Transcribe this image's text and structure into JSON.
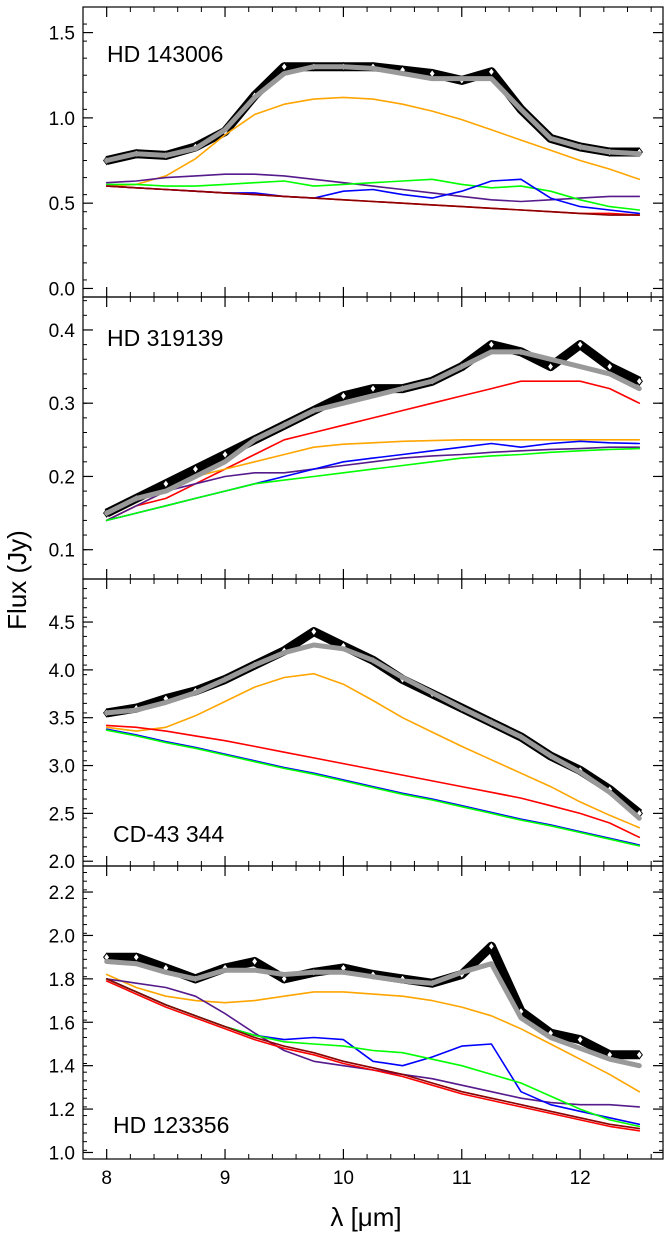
{
  "chart_data": {
    "type": "line",
    "figure": {
      "xlabel": "λ [μm]",
      "ylabel": "Flux (Jy)",
      "xlim": [
        7.8,
        12.7
      ],
      "xticks": [
        "8",
        "9",
        "10",
        "11",
        "12"
      ],
      "tick_values": [
        8,
        9,
        10,
        11,
        12
      ],
      "grid": false
    },
    "series_colors": {
      "observed": "#000000",
      "model_fit": "#999999",
      "orange": "#ffa500",
      "red": "#ff0000",
      "dark_red": "#8b0000",
      "blue": "#0000ff",
      "green": "#00ff00",
      "purple": "#551a8b"
    },
    "panels": [
      {
        "label": "HD 143006",
        "ylim": [
          -0.05,
          1.65
        ],
        "yticks": [
          "0.0",
          "0.5",
          "1.0",
          "1.5"
        ],
        "ytick_values": [
          0.0,
          0.5,
          1.0,
          1.5
        ],
        "x": [
          8.0,
          8.25,
          8.5,
          8.75,
          9.0,
          9.25,
          9.5,
          9.75,
          10.0,
          10.25,
          10.5,
          10.75,
          11.0,
          11.25,
          11.5,
          11.75,
          12.0,
          12.25,
          12.5
        ],
        "observed": [
          0.75,
          0.79,
          0.78,
          0.83,
          0.92,
          1.13,
          1.3,
          1.3,
          1.3,
          1.3,
          1.28,
          1.26,
          1.22,
          1.27,
          1.05,
          0.88,
          0.83,
          0.8,
          0.8
        ],
        "series": [
          {
            "key": "model_fit",
            "values": [
              0.75,
              0.79,
              0.78,
              0.82,
              0.93,
              1.12,
              1.26,
              1.3,
              1.3,
              1.29,
              1.26,
              1.23,
              1.23,
              1.23,
              1.05,
              0.88,
              0.83,
              0.8,
              0.79
            ]
          },
          {
            "key": "orange",
            "values": [
              0.6,
              0.61,
              0.66,
              0.76,
              0.9,
              1.02,
              1.08,
              1.11,
              1.12,
              1.11,
              1.08,
              1.04,
              0.99,
              0.93,
              0.87,
              0.81,
              0.75,
              0.7,
              0.64
            ]
          },
          {
            "key": "purple",
            "values": [
              0.62,
              0.63,
              0.65,
              0.66,
              0.67,
              0.67,
              0.66,
              0.64,
              0.62,
              0.6,
              0.58,
              0.56,
              0.54,
              0.52,
              0.51,
              0.52,
              0.53,
              0.54,
              0.54
            ]
          },
          {
            "key": "green",
            "values": [
              0.61,
              0.61,
              0.6,
              0.6,
              0.61,
              0.62,
              0.63,
              0.6,
              0.61,
              0.62,
              0.63,
              0.64,
              0.61,
              0.59,
              0.6,
              0.57,
              0.52,
              0.48,
              0.46
            ]
          },
          {
            "key": "blue",
            "values": [
              0.6,
              0.59,
              0.58,
              0.57,
              0.56,
              0.56,
              0.54,
              0.53,
              0.57,
              0.58,
              0.55,
              0.53,
              0.57,
              0.63,
              0.64,
              0.53,
              0.48,
              0.46,
              0.44
            ]
          },
          {
            "key": "red",
            "values": [
              0.6,
              0.59,
              0.58,
              0.57,
              0.56,
              0.55,
              0.54,
              0.53,
              0.52,
              0.51,
              0.5,
              0.49,
              0.48,
              0.47,
              0.46,
              0.45,
              0.44,
              0.44,
              0.43
            ]
          },
          {
            "key": "dark_red",
            "values": [
              0.6,
              0.59,
              0.58,
              0.57,
              0.56,
              0.55,
              0.54,
              0.53,
              0.52,
              0.51,
              0.5,
              0.49,
              0.48,
              0.47,
              0.46,
              0.45,
              0.44,
              0.43,
              0.43
            ]
          }
        ]
      },
      {
        "label": "HD 319139",
        "ylim": [
          0.06,
          0.445
        ],
        "yticks": [
          "0.1",
          "0.2",
          "0.3",
          "0.4"
        ],
        "ytick_values": [
          0.1,
          0.2,
          0.3,
          0.4
        ],
        "x": [
          8.0,
          8.25,
          8.5,
          8.75,
          9.0,
          9.25,
          9.5,
          9.75,
          10.0,
          10.25,
          10.5,
          10.75,
          11.0,
          11.25,
          11.5,
          11.75,
          12.0,
          12.25,
          12.5
        ],
        "observed": [
          0.15,
          0.17,
          0.19,
          0.21,
          0.23,
          0.25,
          0.27,
          0.29,
          0.31,
          0.32,
          0.32,
          0.33,
          0.35,
          0.38,
          0.37,
          0.35,
          0.38,
          0.35,
          0.33
        ],
        "series": [
          {
            "key": "model_fit",
            "values": [
              0.15,
              0.17,
              0.18,
              0.2,
              0.22,
              0.25,
              0.27,
              0.29,
              0.3,
              0.31,
              0.32,
              0.33,
              0.35,
              0.37,
              0.37,
              0.36,
              0.35,
              0.34,
              0.32
            ]
          },
          {
            "key": "red",
            "values": [
              0.14,
              0.16,
              0.17,
              0.19,
              0.21,
              0.23,
              0.25,
              0.26,
              0.27,
              0.28,
              0.29,
              0.3,
              0.31,
              0.32,
              0.33,
              0.33,
              0.33,
              0.32,
              0.3
            ]
          },
          {
            "key": "orange",
            "values": [
              0.14,
              0.16,
              0.18,
              0.2,
              0.21,
              0.22,
              0.23,
              0.24,
              0.244,
              0.246,
              0.248,
              0.249,
              0.25,
              0.25,
              0.25,
              0.25,
              0.25,
              0.25,
              0.25
            ]
          },
          {
            "key": "purple",
            "values": [
              0.14,
              0.16,
              0.18,
              0.19,
              0.2,
              0.205,
              0.205,
              0.21,
              0.215,
              0.22,
              0.225,
              0.228,
              0.23,
              0.233,
              0.235,
              0.237,
              0.238,
              0.24,
              0.24
            ]
          },
          {
            "key": "blue",
            "values": [
              0.14,
              0.15,
              0.16,
              0.17,
              0.18,
              0.19,
              0.2,
              0.21,
              0.22,
              0.225,
              0.23,
              0.235,
              0.24,
              0.245,
              0.24,
              0.245,
              0.248,
              0.246,
              0.245
            ]
          },
          {
            "key": "green",
            "values": [
              0.14,
              0.15,
              0.16,
              0.17,
              0.18,
              0.19,
              0.195,
              0.2,
              0.205,
              0.21,
              0.215,
              0.22,
              0.225,
              0.228,
              0.23,
              0.233,
              0.235,
              0.237,
              0.238
            ]
          }
        ]
      },
      {
        "label": "CD-43 344",
        "ylim": [
          1.95,
          4.95
        ],
        "yticks": [
          "2.0",
          "2.5",
          "3.0",
          "3.5",
          "4.0",
          "4.5"
        ],
        "ytick_values": [
          2.0,
          2.5,
          3.0,
          3.5,
          4.0,
          4.5
        ],
        "x": [
          8.0,
          8.25,
          8.5,
          8.75,
          9.0,
          9.25,
          9.5,
          9.75,
          10.0,
          10.25,
          10.5,
          10.75,
          11.0,
          11.25,
          11.5,
          11.75,
          12.0,
          12.25,
          12.5
        ],
        "observed": [
          3.55,
          3.6,
          3.7,
          3.78,
          3.9,
          4.05,
          4.2,
          4.4,
          4.25,
          4.1,
          3.9,
          3.75,
          3.6,
          3.45,
          3.3,
          3.1,
          2.95,
          2.75,
          2.5
        ],
        "series": [
          {
            "key": "model_fit",
            "values": [
              3.55,
              3.58,
              3.66,
              3.76,
              3.9,
              4.05,
              4.18,
              4.26,
              4.22,
              4.1,
              3.92,
              3.76,
              3.6,
              3.45,
              3.3,
              3.1,
              2.93,
              2.72,
              2.45
            ]
          },
          {
            "key": "orange",
            "values": [
              3.4,
              3.36,
              3.4,
              3.52,
              3.67,
              3.82,
              3.92,
              3.96,
              3.85,
              3.68,
              3.5,
              3.35,
              3.2,
              3.06,
              2.92,
              2.78,
              2.62,
              2.48,
              2.35
            ]
          },
          {
            "key": "red",
            "values": [
              3.42,
              3.4,
              3.36,
              3.31,
              3.26,
              3.2,
              3.14,
              3.08,
              3.02,
              2.96,
              2.9,
              2.84,
              2.78,
              2.72,
              2.66,
              2.58,
              2.5,
              2.4,
              2.25
            ]
          },
          {
            "key": "blue",
            "values": [
              3.38,
              3.32,
              3.25,
              3.19,
              3.12,
              3.05,
              2.98,
              2.92,
              2.85,
              2.78,
              2.71,
              2.65,
              2.58,
              2.51,
              2.44,
              2.38,
              2.31,
              2.24,
              2.17
            ]
          },
          {
            "key": "green",
            "values": [
              3.37,
              3.31,
              3.24,
              3.18,
              3.11,
              3.04,
              2.97,
              2.91,
              2.84,
              2.77,
              2.7,
              2.64,
              2.57,
              2.5,
              2.43,
              2.37,
              2.3,
              2.23,
              2.16
            ]
          }
        ]
      },
      {
        "label": "HD 123356",
        "ylim": [
          0.97,
          2.32
        ],
        "yticks": [
          "1.0",
          "1.2",
          "1.4",
          "1.6",
          "1.8",
          "2.0",
          "2.2"
        ],
        "ytick_values": [
          1.0,
          1.2,
          1.4,
          1.6,
          1.8,
          2.0,
          2.2
        ],
        "x": [
          8.0,
          8.25,
          8.5,
          8.75,
          9.0,
          9.25,
          9.5,
          9.75,
          10.0,
          10.25,
          10.5,
          10.75,
          11.0,
          11.25,
          11.5,
          11.75,
          12.0,
          12.25,
          12.5
        ],
        "observed": [
          1.9,
          1.9,
          1.85,
          1.8,
          1.85,
          1.88,
          1.8,
          1.83,
          1.85,
          1.82,
          1.8,
          1.78,
          1.82,
          1.95,
          1.65,
          1.55,
          1.52,
          1.45,
          1.45
        ],
        "series": [
          {
            "key": "model_fit",
            "values": [
              1.88,
              1.87,
              1.83,
              1.8,
              1.84,
              1.84,
              1.82,
              1.83,
              1.83,
              1.81,
              1.79,
              1.78,
              1.83,
              1.87,
              1.62,
              1.53,
              1.48,
              1.43,
              1.4
            ]
          },
          {
            "key": "orange",
            "values": [
              1.82,
              1.76,
              1.72,
              1.7,
              1.69,
              1.7,
              1.72,
              1.74,
              1.74,
              1.73,
              1.72,
              1.7,
              1.67,
              1.63,
              1.57,
              1.5,
              1.43,
              1.36,
              1.28
            ]
          },
          {
            "key": "purple",
            "values": [
              1.8,
              1.78,
              1.76,
              1.72,
              1.64,
              1.55,
              1.47,
              1.42,
              1.4,
              1.38,
              1.36,
              1.34,
              1.31,
              1.28,
              1.25,
              1.23,
              1.22,
              1.22,
              1.21
            ]
          },
          {
            "key": "blue",
            "values": [
              1.8,
              1.74,
              1.68,
              1.63,
              1.58,
              1.54,
              1.52,
              1.53,
              1.52,
              1.42,
              1.4,
              1.44,
              1.49,
              1.5,
              1.28,
              1.22,
              1.19,
              1.16,
              1.13
            ]
          },
          {
            "key": "green",
            "values": [
              1.8,
              1.74,
              1.68,
              1.63,
              1.58,
              1.54,
              1.51,
              1.5,
              1.49,
              1.47,
              1.46,
              1.43,
              1.4,
              1.36,
              1.32,
              1.26,
              1.2,
              1.15,
              1.12
            ]
          },
          {
            "key": "dark_red",
            "values": [
              1.8,
              1.74,
              1.68,
              1.63,
              1.58,
              1.53,
              1.49,
              1.46,
              1.42,
              1.39,
              1.36,
              1.32,
              1.28,
              1.25,
              1.22,
              1.19,
              1.16,
              1.13,
              1.11
            ]
          },
          {
            "key": "red",
            "values": [
              1.79,
              1.73,
              1.67,
              1.62,
              1.57,
              1.52,
              1.48,
              1.45,
              1.41,
              1.38,
              1.35,
              1.31,
              1.27,
              1.24,
              1.21,
              1.18,
              1.15,
              1.12,
              1.1
            ]
          }
        ]
      }
    ]
  }
}
